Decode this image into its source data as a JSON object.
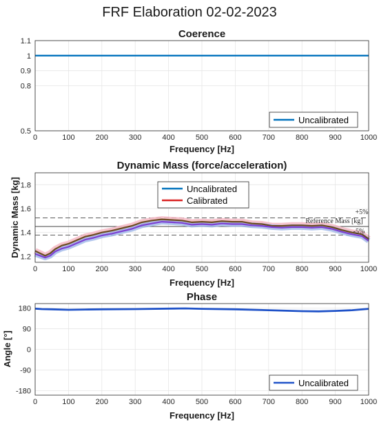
{
  "figure_title": "FRF Elaboration 02-02-2023",
  "colors": {
    "uncalibrated": "#0072BD",
    "calibrated": "#D92020",
    "phase": "#1F52C8",
    "band_blue": "#9FB8E8",
    "band_red": "#F4B8C4",
    "purple": "#7B3FD4",
    "olive": "#6B4A1E",
    "grid": "#e6e6e6",
    "reference": "#444444"
  },
  "chart_data": [
    {
      "id": "coherence",
      "type": "line",
      "title": "Coerence",
      "xlabel": "Frequency [Hz]",
      "ylabel": "",
      "xlim": [
        0,
        1000
      ],
      "ylim": [
        0.5,
        1.1
      ],
      "xticks": [
        0,
        100,
        200,
        300,
        400,
        500,
        600,
        700,
        800,
        900,
        1000
      ],
      "yticks": [
        0.5,
        0.8,
        0.9,
        1,
        1.1
      ],
      "ytick_labels": [
        "0.5",
        "0.8",
        "0.9",
        "1",
        "1.1"
      ],
      "grid": true,
      "legend_position": "bottom-right",
      "legend": [
        "Uncalibrated"
      ],
      "series": [
        {
          "name": "Uncalibrated",
          "color": "#0072BD",
          "x": [
            0,
            100,
            200,
            300,
            400,
            500,
            600,
            700,
            800,
            900,
            1000
          ],
          "y": [
            1,
            1,
            1,
            1,
            1,
            1,
            1,
            1,
            1,
            1,
            1
          ]
        }
      ]
    },
    {
      "id": "dynamic-mass",
      "type": "line",
      "title": "Dynamic Mass (force/acceleration)",
      "xlabel": "Frequency [Hz]",
      "ylabel": "Dynamic Mass [kg]",
      "xlim": [
        0,
        1000
      ],
      "ylim": [
        1.15,
        1.9
      ],
      "xticks": [
        0,
        100,
        200,
        300,
        400,
        500,
        600,
        700,
        800,
        900,
        1000
      ],
      "yticks": [
        1.2,
        1.4,
        1.6,
        1.8
      ],
      "ytick_labels": [
        "1.2",
        "1.4",
        "1.6",
        "1.8"
      ],
      "grid": true,
      "legend_position": "top-center",
      "legend": [
        "Uncalibrated",
        "Calibrated"
      ],
      "reference": {
        "value": 1.45,
        "label": "Reference Mass [kg]"
      },
      "tolerance": {
        "upper": 1.5225,
        "lower": 1.3775,
        "upper_label": "+5%",
        "lower_label": "-5%"
      },
      "series": [
        {
          "name": "Uncalibrated",
          "color": "#7B3FD4",
          "x": [
            0,
            15,
            30,
            45,
            60,
            80,
            100,
            125,
            150,
            175,
            200,
            230,
            260,
            290,
            320,
            350,
            380,
            410,
            440,
            470,
            500,
            530,
            560,
            590,
            620,
            650,
            680,
            710,
            740,
            770,
            800,
            830,
            860,
            890,
            920,
            950,
            980,
            1000
          ],
          "y": [
            1.22,
            1.205,
            1.19,
            1.205,
            1.24,
            1.265,
            1.28,
            1.31,
            1.34,
            1.355,
            1.375,
            1.39,
            1.41,
            1.43,
            1.46,
            1.475,
            1.49,
            1.485,
            1.48,
            1.465,
            1.47,
            1.465,
            1.475,
            1.47,
            1.47,
            1.46,
            1.455,
            1.445,
            1.44,
            1.445,
            1.445,
            1.44,
            1.445,
            1.43,
            1.405,
            1.385,
            1.37,
            1.33
          ]
        },
        {
          "name": "Calibrated",
          "color": "#6B4A1E",
          "x": [
            0,
            15,
            30,
            45,
            60,
            80,
            100,
            125,
            150,
            175,
            200,
            230,
            260,
            290,
            320,
            350,
            380,
            410,
            440,
            470,
            500,
            530,
            560,
            590,
            620,
            650,
            680,
            710,
            740,
            770,
            800,
            830,
            860,
            890,
            920,
            950,
            980,
            1000
          ],
          "y": [
            1.245,
            1.225,
            1.205,
            1.225,
            1.26,
            1.29,
            1.305,
            1.335,
            1.365,
            1.38,
            1.4,
            1.415,
            1.435,
            1.455,
            1.485,
            1.5,
            1.51,
            1.505,
            1.5,
            1.485,
            1.49,
            1.485,
            1.495,
            1.49,
            1.49,
            1.475,
            1.47,
            1.455,
            1.455,
            1.46,
            1.46,
            1.455,
            1.46,
            1.445,
            1.42,
            1.4,
            1.385,
            1.345
          ]
        }
      ]
    },
    {
      "id": "phase",
      "type": "line",
      "title": "Phase",
      "xlabel": "Frequency [Hz]",
      "ylabel": "Angle [°]",
      "xlim": [
        0,
        1000
      ],
      "ylim": [
        -200,
        200
      ],
      "xticks": [
        0,
        100,
        200,
        300,
        400,
        500,
        600,
        700,
        800,
        900,
        1000
      ],
      "yticks": [
        -180,
        -90,
        0,
        90,
        180
      ],
      "ytick_labels": [
        "-180",
        "-90",
        "0",
        "90",
        "180"
      ],
      "grid": true,
      "legend_position": "bottom-right",
      "legend": [
        "Uncalibrated"
      ],
      "series": [
        {
          "name": "Uncalibrated",
          "color": "#1F52C8",
          "x": [
            0,
            20,
            50,
            100,
            150,
            200,
            300,
            400,
            450,
            500,
            600,
            700,
            800,
            850,
            900,
            950,
            1000
          ],
          "y": [
            178,
            176,
            175,
            173,
            174,
            175,
            176,
            178,
            179,
            177,
            175,
            171,
            167,
            166,
            168,
            171,
            177
          ]
        }
      ]
    }
  ]
}
